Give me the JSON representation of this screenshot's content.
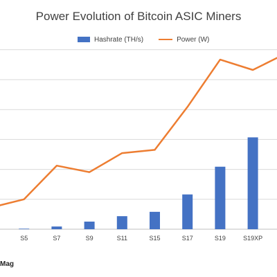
{
  "footnote": "Mag",
  "colors": {
    "hashrate": "#4472C4",
    "power": "#ED7D31",
    "grid": "#d9d9d9",
    "text": "#404040"
  },
  "chart_data": {
    "type": "bar",
    "title": "Power Evolution of Bitcoin ASIC Miners",
    "categories": [
      "",
      "S5",
      "S7",
      "S9",
      "S11",
      "S15",
      "S17",
      "S19",
      "S19XP",
      ""
    ],
    "series": [
      {
        "name": "Hashrate (TH/s)",
        "type": "bar",
        "values": [
          null,
          1,
          5,
          14,
          24,
          32,
          64,
          115,
          169,
          null
        ]
      },
      {
        "name": "Power (W)",
        "type": "line",
        "values": [
          40,
          55,
          117,
          105,
          140,
          146,
          225,
          312,
          293,
          323
        ]
      }
    ],
    "legend": "top",
    "grid": true
  }
}
